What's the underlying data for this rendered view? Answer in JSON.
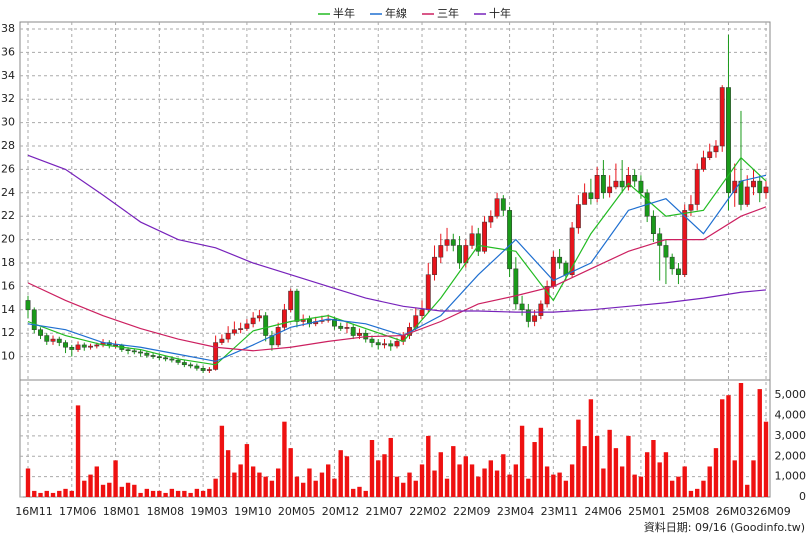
{
  "chart_data": {
    "type": "candlestick",
    "source": "資料日期: 09/16 (Goodinfo.tw)",
    "categories": [
      "16M11",
      null,
      null,
      null,
      null,
      null,
      null,
      "17M06",
      null,
      null,
      null,
      null,
      null,
      null,
      "18M01",
      null,
      null,
      null,
      null,
      null,
      null,
      "18M08",
      null,
      null,
      null,
      null,
      null,
      null,
      "19M03",
      null,
      null,
      null,
      null,
      null,
      null,
      "19M10",
      null,
      null,
      null,
      null,
      null,
      null,
      "20M05",
      null,
      null,
      null,
      null,
      null,
      null,
      "20M12",
      null,
      null,
      null,
      null,
      null,
      null,
      "21M07",
      null,
      null,
      null,
      null,
      null,
      null,
      "22M02",
      null,
      null,
      null,
      null,
      null,
      null,
      "22M09",
      null,
      null,
      null,
      null,
      null,
      null,
      "23M04",
      null,
      null,
      null,
      null,
      null,
      null,
      "23M11",
      null,
      null,
      null,
      null,
      null,
      null,
      "24M06",
      null,
      null,
      null,
      null,
      null,
      null,
      "25M01",
      null,
      null,
      null,
      null,
      null,
      null,
      "25M08",
      null,
      null,
      null,
      null,
      null,
      null,
      "26M03",
      null,
      null,
      null,
      null,
      null,
      "26M09"
    ],
    "open": [
      14.8,
      14.0,
      12.3,
      11.8,
      11.3,
      11.5,
      11.2,
      10.8,
      10.6,
      11.0,
      10.8,
      10.9,
      11.0,
      11.2,
      11.0,
      11.0,
      10.6,
      10.5,
      10.4,
      10.3,
      10.1,
      10.0,
      9.9,
      9.8,
      9.7,
      9.5,
      9.3,
      9.2,
      9.0,
      8.8,
      8.9,
      11.2,
      11.5,
      12.0,
      12.3,
      12.4,
      12.8,
      13.3,
      13.5,
      11.8,
      11.0,
      12.5,
      14.0,
      15.6,
      13.0,
      13.2,
      12.8,
      13.0,
      13.1,
      13.2,
      12.6,
      12.4,
      12.5,
      11.8,
      12.0,
      11.5,
      11.2,
      11.0,
      11.1,
      10.9,
      11.3,
      11.8,
      12.5,
      13.5,
      14.0,
      17.0,
      18.5,
      19.5,
      20.0,
      19.5,
      18.0,
      19.5,
      20.5,
      19.0,
      21.5,
      22.0,
      23.5,
      22.5,
      17.5,
      14.5,
      14.0,
      13.0,
      13.5,
      14.5,
      16.0,
      18.5,
      18.0,
      17.0,
      21.0,
      23.0,
      24.0,
      23.5,
      25.5,
      24.0,
      24.5,
      25.0,
      24.5,
      25.5,
      25.0,
      24.0,
      22.0,
      20.5,
      19.5,
      18.5,
      17.5,
      17.0,
      22.5,
      23.0,
      26.0,
      27.0,
      27.5,
      28.0,
      33.0,
      24.0,
      25.0,
      23.0,
      24.5,
      25.0,
      24.0
    ],
    "high": [
      15.2,
      14.2,
      12.5,
      12.0,
      11.8,
      11.7,
      11.4,
      11.0,
      11.3,
      11.2,
      11.1,
      11.2,
      11.5,
      11.4,
      11.3,
      11.1,
      10.8,
      10.7,
      10.6,
      10.5,
      10.3,
      10.2,
      10.1,
      10.0,
      9.9,
      9.7,
      9.5,
      9.4,
      9.2,
      9.1,
      11.8,
      11.9,
      12.6,
      13.0,
      12.9,
      13.2,
      13.8,
      14.0,
      13.8,
      12.2,
      12.9,
      14.5,
      15.8,
      15.8,
      13.6,
      13.5,
      13.4,
      13.5,
      13.6,
      13.4,
      12.9,
      12.9,
      12.8,
      12.4,
      12.3,
      11.8,
      11.5,
      11.5,
      11.4,
      11.6,
      12.1,
      12.9,
      14.2,
      14.8,
      18.0,
      19.5,
      20.5,
      21.0,
      20.5,
      20.3,
      20.0,
      21.2,
      21.0,
      22.0,
      22.5,
      24.0,
      23.8,
      22.8,
      18.5,
      15.2,
      14.5,
      14.0,
      14.8,
      16.5,
      19.0,
      19.2,
      18.2,
      21.5,
      23.8,
      24.8,
      25.2,
      26.2,
      26.8,
      25.5,
      26.5,
      26.8,
      26.2,
      26.0,
      25.5,
      24.3,
      22.5,
      21.0,
      20.0,
      18.8,
      18.0,
      23.0,
      23.8,
      26.5,
      27.6,
      28.2,
      28.5,
      33.2,
      37.5,
      26.5,
      31.0,
      25.5,
      26.0,
      25.5,
      25.0
    ],
    "low": [
      13.3,
      12.0,
      11.5,
      11.0,
      11.0,
      10.9,
      10.3,
      10.0,
      10.4,
      10.5,
      10.6,
      10.7,
      10.8,
      10.7,
      10.7,
      10.4,
      10.2,
      10.2,
      10.0,
      9.9,
      9.8,
      9.7,
      9.6,
      9.5,
      9.3,
      9.1,
      9.0,
      8.8,
      8.6,
      8.6,
      8.8,
      11.0,
      11.2,
      11.8,
      12.0,
      12.2,
      12.5,
      13.0,
      11.3,
      10.5,
      10.8,
      12.2,
      13.8,
      12.5,
      12.6,
      12.5,
      12.6,
      12.8,
      12.9,
      12.3,
      12.2,
      12.0,
      11.5,
      11.5,
      11.2,
      10.8,
      10.6,
      10.7,
      10.5,
      10.7,
      11.0,
      11.5,
      12.2,
      13.2,
      13.8,
      16.5,
      18.0,
      19.0,
      19.0,
      17.5,
      17.6,
      19.2,
      18.6,
      18.8,
      21.0,
      21.8,
      22.0,
      16.8,
      14.0,
      13.5,
      12.5,
      12.6,
      13.2,
      14.2,
      15.8,
      17.5,
      16.5,
      16.8,
      20.5,
      23.0,
      23.0,
      23.2,
      23.5,
      23.6,
      24.3,
      24.0,
      24.2,
      24.5,
      23.5,
      21.5,
      19.8,
      16.5,
      16.2,
      17.0,
      16.2,
      16.8,
      22.0,
      22.5,
      25.8,
      26.8,
      27.0,
      27.5,
      22.5,
      22.8,
      22.5,
      22.8,
      23.8,
      23.2,
      23.5
    ],
    "close": [
      14.0,
      12.3,
      11.8,
      11.3,
      11.5,
      11.2,
      10.8,
      10.6,
      11.0,
      10.8,
      10.9,
      11.0,
      11.2,
      11.0,
      11.0,
      10.6,
      10.5,
      10.4,
      10.3,
      10.1,
      10.0,
      9.9,
      9.8,
      9.7,
      9.5,
      9.3,
      9.2,
      9.0,
      8.8,
      8.9,
      11.2,
      11.5,
      12.0,
      12.3,
      12.4,
      12.8,
      13.3,
      13.5,
      11.8,
      11.0,
      12.5,
      14.0,
      15.6,
      13.0,
      13.2,
      12.8,
      13.0,
      13.1,
      13.2,
      12.6,
      12.4,
      12.5,
      11.8,
      12.0,
      11.5,
      11.2,
      11.0,
      11.1,
      10.9,
      11.3,
      11.8,
      12.5,
      13.5,
      14.0,
      17.0,
      18.5,
      19.5,
      20.0,
      19.5,
      18.0,
      19.5,
      20.5,
      19.0,
      21.5,
      22.0,
      23.5,
      22.5,
      17.5,
      14.5,
      14.0,
      13.0,
      13.5,
      14.5,
      16.0,
      18.5,
      18.0,
      17.0,
      21.0,
      23.0,
      24.0,
      23.5,
      25.5,
      24.0,
      24.5,
      25.0,
      24.5,
      25.5,
      25.0,
      24.0,
      22.0,
      20.5,
      19.5,
      18.5,
      17.5,
      17.0,
      22.5,
      23.0,
      26.0,
      27.0,
      27.5,
      28.0,
      33.0,
      24.0,
      25.0,
      23.0,
      24.5,
      25.0,
      24.0,
      24.5
    ],
    "volume": [
      1400,
      300,
      200,
      300,
      200,
      300,
      400,
      300,
      4500,
      800,
      1100,
      1500,
      600,
      700,
      1800,
      500,
      700,
      600,
      200,
      400,
      300,
      300,
      200,
      400,
      300,
      300,
      200,
      400,
      300,
      400,
      900,
      3500,
      2300,
      1200,
      1600,
      2600,
      1500,
      1200,
      1000,
      800,
      1400,
      3700,
      2400,
      1000,
      700,
      1400,
      800,
      1200,
      1600,
      900,
      2300,
      2000,
      400,
      500,
      300,
      2800,
      1800,
      2100,
      2900,
      1000,
      700,
      1200,
      800,
      1600,
      3000,
      1300,
      2200,
      900,
      2500,
      1600,
      2000,
      1600,
      1000,
      1400,
      1800,
      1300,
      2100,
      1100,
      1600,
      3500,
      900,
      2700,
      3400,
      1500,
      1100,
      1200,
      800,
      1600,
      3800,
      2500,
      4800,
      3000,
      1400,
      3300,
      2400,
      1500,
      3000,
      1100,
      1000,
      2200,
      2800,
      1700,
      2200,
      800,
      1000,
      1500,
      300,
      400,
      800,
      1500,
      2400,
      4800,
      5000,
      1800,
      5600,
      600,
      1800,
      5300,
      3700
    ],
    "up_color": "#e8141c",
    "down_color": "#1a9a1a",
    "volume_color": "#ee1111",
    "series": [
      {
        "name": "半年",
        "color": "#22bb22",
        "x": [
          0,
          6,
          12,
          18,
          24,
          30,
          36,
          42,
          48,
          54,
          60,
          66,
          72,
          78,
          84,
          90,
          96,
          102,
          108,
          114,
          118
        ],
        "values": [
          13.0,
          11.8,
          11.0,
          10.6,
          9.8,
          9.3,
          12.2,
          13.0,
          13.5,
          12.4,
          11.3,
          15.0,
          19.5,
          19.0,
          14.8,
          20.5,
          24.8,
          22.0,
          22.5,
          27.0,
          25.0
        ]
      },
      {
        "name": "年線",
        "color": "#1f6fd0",
        "x": [
          0,
          6,
          12,
          18,
          24,
          30,
          36,
          42,
          48,
          54,
          60,
          66,
          72,
          78,
          84,
          90,
          96,
          102,
          108,
          114,
          118
        ],
        "values": [
          12.8,
          12.3,
          11.2,
          10.8,
          10.2,
          9.6,
          11.0,
          12.5,
          13.2,
          12.8,
          11.8,
          13.5,
          17.0,
          20.0,
          16.5,
          18.0,
          22.5,
          23.5,
          20.5,
          25.0,
          25.5
        ]
      },
      {
        "name": "三年",
        "color": "#cc2060",
        "x": [
          0,
          6,
          12,
          18,
          24,
          30,
          36,
          42,
          48,
          54,
          60,
          66,
          72,
          78,
          84,
          90,
          96,
          102,
          108,
          114,
          118
        ],
        "values": [
          16.3,
          14.8,
          13.5,
          12.4,
          11.5,
          10.8,
          10.5,
          10.8,
          11.3,
          11.7,
          11.8,
          13.0,
          14.5,
          15.2,
          16.0,
          17.5,
          19.0,
          20.0,
          20.0,
          22.0,
          22.8
        ]
      },
      {
        "name": "十年",
        "color": "#7722bb",
        "x": [
          0,
          6,
          12,
          18,
          24,
          30,
          36,
          42,
          48,
          54,
          60,
          66,
          72,
          78,
          84,
          90,
          96,
          102,
          108,
          114,
          118
        ],
        "values": [
          27.2,
          26.0,
          23.8,
          21.5,
          20.0,
          19.3,
          18.0,
          17.0,
          16.0,
          15.0,
          14.3,
          13.9,
          13.9,
          13.8,
          13.8,
          14.0,
          14.3,
          14.6,
          15.0,
          15.5,
          15.7
        ]
      }
    ],
    "ylim": [
      8,
      38
    ],
    "yticks": [
      10,
      12,
      14,
      16,
      18,
      20,
      22,
      24,
      26,
      28,
      30,
      32,
      34,
      36,
      38
    ],
    "y2lim": [
      0,
      5600
    ],
    "y2ticks": [
      0,
      {
        "value": 1000,
        "label": "1,000"
      },
      {
        "value": 2000,
        "label": "2,000"
      },
      {
        "value": 3000,
        "label": "3,000"
      },
      {
        "value": 4000,
        "label": "4,000"
      },
      {
        "value": 5000,
        "label": "5,000"
      }
    ],
    "grid": true
  }
}
